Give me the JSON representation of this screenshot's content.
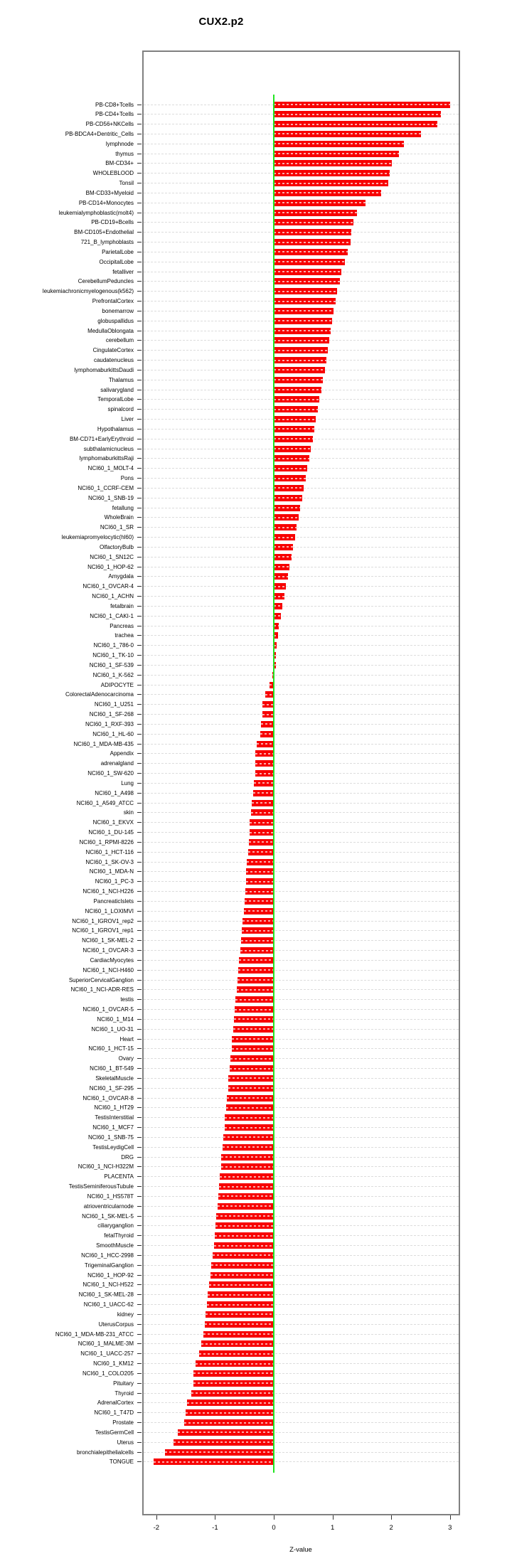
{
  "chart_data": {
    "type": "bar",
    "orientation": "horizontal",
    "title": "CUX2.p2",
    "xlabel": "Z-value",
    "xlim": [
      -2.25,
      3.2
    ],
    "xticks": [
      "-2",
      "-1",
      "0",
      "1",
      "2",
      "3"
    ],
    "grid": "dashed-horizontal-per-category",
    "legend": "none",
    "bar_color": "#f70000",
    "zero_line_color": "#21e521",
    "categories": [
      "PB-CD8+Tcells",
      "PB-CD4+Tcells",
      "PB-CD56+NKCells",
      "PB-BDCA4+Dentritic_Cells",
      "lymphnode",
      "thymus",
      "BM-CD34+",
      "WHOLEBLOOD",
      "Tonsil",
      "BM-CD33+Myeloid",
      "PB-CD14+Monocytes",
      "leukemialymphoblastic(molt4)",
      "PB-CD19+Bcells",
      "BM-CD105+Endothelial",
      "721_B_lymphoblasts",
      "ParietalLobe",
      "OccipitalLobe",
      "fetalliver",
      "CerebellumPeduncles",
      "leukemiachronicmyelogenous(k562)",
      "PrefrontalCortex",
      "bonemarrow",
      "globuspallidus",
      "MedullaOblongata",
      "cerebellum",
      "CingulateCortex",
      "caudatenucleus",
      "lymphomaburkittsDaudi",
      "Thalamus",
      "salivarygland",
      "TemporalLobe",
      "spinalcord",
      "Liver",
      "Hypothalamus",
      "BM-CD71+EarlyErythroid",
      "subthalamicnucleus",
      "lymphomaburkittsRaji",
      "NCI60_1_MOLT-4",
      "Pons",
      "NCI60_1_CCRF-CEM",
      "NCI60_1_SNB-19",
      "fetallung",
      "WholeBrain",
      "NCI60_1_SR",
      "leukemiapromyelocytic(hl60)",
      "OlfactoryBulb",
      "NCI60_1_SN12C",
      "NCI60_1_HOP-62",
      "Amygdala",
      "NCI60_1_OVCAR-4",
      "NCI60_1_ACHN",
      "fetalbrain",
      "NCI60_1_CAKI-1",
      "Pancreas",
      "trachea",
      "NCI60_1_786-0",
      "NCI60_1_TK-10",
      "NCI60_1_SF-539",
      "NCI60_1_K-562",
      "ADIPOCYTE",
      "ColorectalAdenocarcinoma",
      "NCI60_1_U251",
      "NCI60_1_SF-268",
      "NCI60_1_RXF-393",
      "NCI60_1_HL-60",
      "NCI60_1_MDA-MB-435",
      "Appendix",
      "adrenalgland",
      "NCI60_1_SW-620",
      "Lung",
      "NCI60_1_A498",
      "NCI60_1_A549_ATCC",
      "skin",
      "NCI60_1_EKVX",
      "NCI60_1_DU-145",
      "NCI60_1_RPMI-8226",
      "NCI60_1_HCT-116",
      "NCI60_1_SK-OV-3",
      "NCI60_1_MDA-N",
      "NCI60_1_PC-3",
      "NCI60_1_NCI-H226",
      "PancreaticIslets",
      "NCI60_1_LOXIMVI",
      "NCI60_1_IGROV1_rep2",
      "NCI60_1_IGROV1_rep1",
      "NCI60_1_SK-MEL-2",
      "NCI60_1_OVCAR-3",
      "CardiacMyocytes",
      "NCI60_1_NCI-H460",
      "SuperiorCervicalGanglion",
      "NCI60_1_NCI-ADR-RES",
      "testis",
      "NCI60_1_OVCAR-5",
      "NCI60_1_M14",
      "NCI60_1_UO-31",
      "Heart",
      "NCI60_1_HCT-15",
      "Ovary",
      "NCI60_1_BT-549",
      "SkeletalMuscle",
      "NCI60_1_SF-295",
      "NCI60_1_OVCAR-8",
      "NCI60_1_HT29",
      "TestisInterstitial",
      "NCI60_1_MCF7",
      "NCI60_1_SNB-75",
      "TestisLeydigCell",
      "DRG",
      "NCI60_1_NCI-H322M",
      "PLACENTA",
      "TestisSeminiferousTubule",
      "NCI60_1_HS578T",
      "atrioventricularnode",
      "NCI60_1_SK-MEL-5",
      "ciliaryganglion",
      "fetalThyroid",
      "SmoothMuscle",
      "NCI60_1_HCC-2998",
      "TrigeminalGanglion",
      "NCI60_1_HOP-92",
      "NCI60_1_NCI-H522",
      "NCI60_1_SK-MEL-28",
      "NCI60_1_UACC-62",
      "kidney",
      "UterusCorpus",
      "NCI60_1_MDA-MB-231_ATCC",
      "NCI60_1_MALME-3M",
      "NCI60_1_UACC-257",
      "NCI60_1_KM12",
      "NCI60_1_COLO205",
      "Pituitary",
      "Thyroid",
      "AdrenalCortex",
      "NCI60_1_T47D",
      "Prostate",
      "TestisGermCell",
      "Uterus",
      "bronchialepithelialcells",
      "TONGUE"
    ],
    "values": [
      3.0,
      2.85,
      2.79,
      2.5,
      2.21,
      2.13,
      2.01,
      1.97,
      1.95,
      1.83,
      1.56,
      1.42,
      1.35,
      1.32,
      1.31,
      1.26,
      1.21,
      1.15,
      1.12,
      1.08,
      1.05,
      1.02,
      0.99,
      0.97,
      0.95,
      0.92,
      0.9,
      0.87,
      0.84,
      0.81,
      0.78,
      0.75,
      0.72,
      0.69,
      0.66,
      0.63,
      0.6,
      0.57,
      0.54,
      0.51,
      0.48,
      0.45,
      0.42,
      0.39,
      0.36,
      0.33,
      0.3,
      0.27,
      0.24,
      0.21,
      0.18,
      0.15,
      0.12,
      0.09,
      0.07,
      0.05,
      0.04,
      0.04,
      -0.03,
      -0.07,
      -0.14,
      -0.19,
      -0.19,
      -0.22,
      -0.23,
      -0.29,
      -0.32,
      -0.32,
      -0.32,
      -0.34,
      -0.35,
      -0.37,
      -0.39,
      -0.41,
      -0.41,
      -0.42,
      -0.43,
      -0.46,
      -0.47,
      -0.47,
      -0.48,
      -0.5,
      -0.51,
      -0.53,
      -0.54,
      -0.56,
      -0.57,
      -0.59,
      -0.6,
      -0.62,
      -0.63,
      -0.65,
      -0.66,
      -0.68,
      -0.69,
      -0.71,
      -0.72,
      -0.74,
      -0.75,
      -0.77,
      -0.78,
      -0.8,
      -0.81,
      -0.83,
      -0.84,
      -0.86,
      -0.87,
      -0.89,
      -0.9,
      -0.92,
      -0.93,
      -0.95,
      -0.96,
      -0.98,
      -0.99,
      -1.01,
      -1.02,
      -1.04,
      -1.06,
      -1.08,
      -1.1,
      -1.12,
      -1.14,
      -1.16,
      -1.18,
      -1.2,
      -1.24,
      -1.27,
      -1.33,
      -1.37,
      -1.37,
      -1.41,
      -1.48,
      -1.5,
      -1.52,
      -1.63,
      -1.71,
      -1.85,
      -2.04
    ]
  }
}
